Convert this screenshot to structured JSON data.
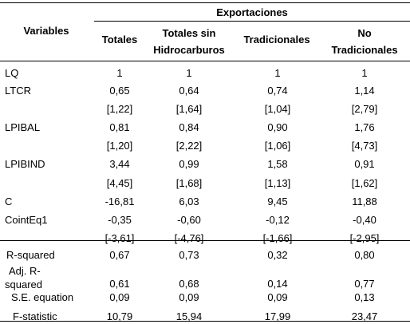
{
  "header": {
    "variables": "Variables",
    "group": "Exportaciones",
    "columns": [
      {
        "l1": "Totales",
        "l2": ""
      },
      {
        "l1": "Totales sin",
        "l2": "Hidrocarburos"
      },
      {
        "l1": "Tradicionales",
        "l2": ""
      },
      {
        "l1": "No",
        "l2": "Tradicionales"
      }
    ]
  },
  "rows": [
    {
      "label": "LQ",
      "label2": "",
      "values": [
        "1",
        "1",
        "1",
        "1"
      ]
    },
    {
      "label": "LTCR",
      "label2": "",
      "values": [
        "0,65",
        "0,64",
        "0,74",
        "1,14"
      ]
    },
    {
      "label": "",
      "label2": "",
      "values": [
        "[1,22]",
        "[1,64]",
        "[1,04]",
        "[2,79]"
      ]
    },
    {
      "label": "LPIBAL",
      "label2": "",
      "values": [
        "0,81",
        "0,84",
        "0,90",
        "1,76"
      ]
    },
    {
      "label": "",
      "label2": "",
      "values": [
        "[1,20]",
        "[2,22]",
        "[1,06]",
        "[4,73]"
      ]
    },
    {
      "label": "LPIBIND",
      "label2": "",
      "values": [
        "3,44",
        "0,99",
        "1,58",
        "0,91"
      ]
    },
    {
      "label": "",
      "label2": "",
      "values": [
        "[4,45]",
        "[1,68]",
        "[1,13]",
        "[1,62]"
      ]
    },
    {
      "label": "C",
      "label2": "",
      "values": [
        "-16,81",
        "6,03",
        "9,45",
        "11,88"
      ]
    },
    {
      "label": "CointEq1",
      "label2": "",
      "values": [
        "-0,35",
        "-0,60",
        "-0,12",
        "-0,40"
      ]
    },
    {
      "label": "",
      "label2": "",
      "values": [
        "[-3,61]",
        "[-4,76]",
        "[-1,66]",
        "[-2,95]"
      ]
    },
    {
      "label": "R-squared",
      "label2": "",
      "values": [
        "0,67",
        "0,73",
        "0,32",
        "0,80"
      ]
    },
    {
      "label": "Adj. R-",
      "label2": "squared",
      "values": [
        "0,61",
        "0,68",
        "0,14",
        "0,77"
      ]
    },
    {
      "label": "S.E. equation",
      "label2": "",
      "values": [
        "0,09",
        "0,09",
        "0,09",
        "0,13"
      ]
    },
    {
      "label": "F-statistic",
      "label2": "",
      "values": [
        "10,79",
        "15,94",
        "17,99",
        "23,47"
      ]
    }
  ]
}
